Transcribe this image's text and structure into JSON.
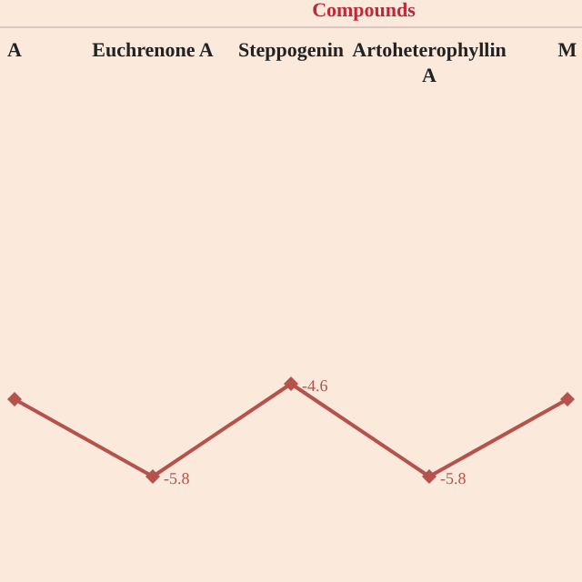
{
  "chart_data": {
    "type": "line",
    "xlabel": "Compounds",
    "categories": [
      "A",
      "Euchrenone A",
      "Steppogenin",
      "Artoheterophyllin A",
      "M"
    ],
    "series": [
      {
        "color": "#b5524c",
        "values": [
          -4.8,
          -5.8,
          -4.6,
          -5.8,
          -4.8
        ],
        "value_labels": [
          null,
          "-5.8",
          "-4.6",
          "-5.8",
          null
        ]
      }
    ],
    "marker": "diamond",
    "line_style": "solid",
    "legend": false,
    "grid": false
  }
}
